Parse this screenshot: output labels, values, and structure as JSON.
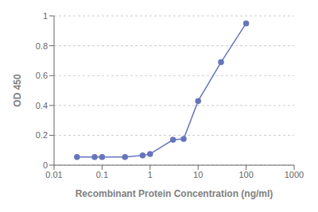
{
  "chart_data": {
    "type": "line",
    "x": [
      0.03,
      0.07,
      0.1,
      0.3,
      0.7,
      1.0,
      3.0,
      5.0,
      10.0,
      30.0,
      100.0
    ],
    "values": [
      0.055,
      0.055,
      0.055,
      0.055,
      0.065,
      0.075,
      0.17,
      0.175,
      0.43,
      0.69,
      0.95
    ],
    "xlabel": "Recombinant Protein Concentration (ng/ml)",
    "ylabel": "OD 450",
    "xlim": [
      0.01,
      1000
    ],
    "xticks": [
      0.01,
      0.1,
      1,
      10,
      100,
      1000
    ],
    "ylim": [
      0,
      1.0
    ],
    "yticks": [
      0,
      0.2,
      0.4,
      0.6,
      0.8,
      1
    ],
    "log": "x",
    "grid": "y",
    "color": "#6675bb",
    "marker": "circle"
  }
}
